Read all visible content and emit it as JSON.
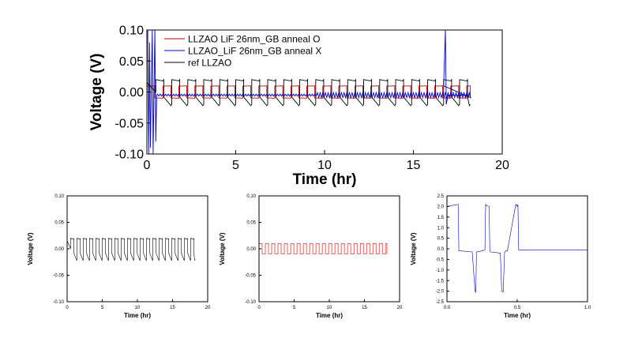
{
  "chart_data": [
    {
      "type": "line",
      "xlabel": "Time (hr)",
      "ylabel": "Voltage (V)",
      "xlim": [
        0,
        20
      ],
      "ylim": [
        -0.1,
        0.1
      ],
      "xticks": [
        "0",
        "5",
        "10",
        "15",
        "20"
      ],
      "yticks": [
        "-0.10",
        "-0.05",
        "0.00",
        "0.05",
        "0.10"
      ],
      "legend_position": "top-left",
      "series": [
        {
          "name": "LLZAO LiF 26nm_GB anneal O",
          "color": "#cc0000",
          "x_range": [
            0,
            18.2
          ],
          "cycle_hr": 0.9,
          "amplitude": 0.01
        },
        {
          "name": "LLZAO_LiF 26nm_GB anneal X",
          "color": "#0000cc",
          "x_range": [
            0,
            18.2
          ],
          "baseline": -0.005,
          "spikes_at": [
            0.2,
            0.4,
            16.8
          ]
        },
        {
          "name": "ref LLZAO",
          "color": "#000000",
          "x_range": [
            0,
            18.2
          ],
          "cycle_hr": 0.9,
          "amplitude": 0.02
        }
      ]
    },
    {
      "type": "line",
      "xlabel": "Time (hr)",
      "ylabel": "Voltage (V)",
      "xlim": [
        0,
        20
      ],
      "ylim": [
        -0.1,
        0.1
      ],
      "xticks": [
        "0",
        "5",
        "10",
        "15",
        "20"
      ],
      "yticks": [
        "-0.10",
        "-0.05",
        "0.00",
        "0.05",
        "0.10"
      ],
      "series": [
        {
          "color": "#000000",
          "x_range": [
            0,
            18.2
          ],
          "cycle_hr": 0.9,
          "amplitude": 0.02
        }
      ]
    },
    {
      "type": "line",
      "xlabel": "Time (hr)",
      "ylabel": "Voltage (V)",
      "xlim": [
        0,
        20
      ],
      "ylim": [
        -0.1,
        0.1
      ],
      "xticks": [
        "0",
        "5",
        "10",
        "15",
        "20"
      ],
      "yticks": [
        "-0.10",
        "-0.05",
        "0.00",
        "0.05",
        "0.10"
      ],
      "series": [
        {
          "color": "#cc0000",
          "x_range": [
            0,
            18.2
          ],
          "cycle_hr": 0.9,
          "amplitude": 0.01
        }
      ]
    },
    {
      "type": "line",
      "xlabel": "Time (hr)",
      "ylabel": "Voltage (V)",
      "xlim": [
        0,
        1
      ],
      "ylim": [
        -2.5,
        2.5
      ],
      "xticks": [
        "0.0",
        "0.5",
        "1.0"
      ],
      "yticks": [
        "-2.5",
        "-2.0",
        "-1.5",
        "-1.0",
        "-0.5",
        "0.0",
        "0.5",
        "1.0",
        "1.5",
        "2.0",
        "2.5"
      ],
      "series": [
        {
          "color": "#0000cc",
          "x": [
            0,
            0.08,
            0.085,
            0.1,
            0.18,
            0.2,
            0.205,
            0.21,
            0.25,
            0.27,
            0.275,
            0.28,
            0.3,
            0.305,
            0.31,
            0.38,
            0.39,
            0.4,
            0.41,
            0.42,
            0.43,
            0.49,
            0.5,
            0.505,
            0.51,
            0.6,
            1.0
          ],
          "y": [
            2.0,
            2.1,
            -0.1,
            -0.1,
            -0.15,
            -2.0,
            -2.05,
            -0.15,
            -0.1,
            -0.05,
            2.1,
            2.05,
            2.0,
            -0.1,
            -0.15,
            -0.2,
            -2.0,
            -2.05,
            -0.15,
            -0.1,
            -0.1,
            2.1,
            2.0,
            2.1,
            -0.05,
            -0.05,
            -0.05
          ]
        }
      ]
    }
  ]
}
